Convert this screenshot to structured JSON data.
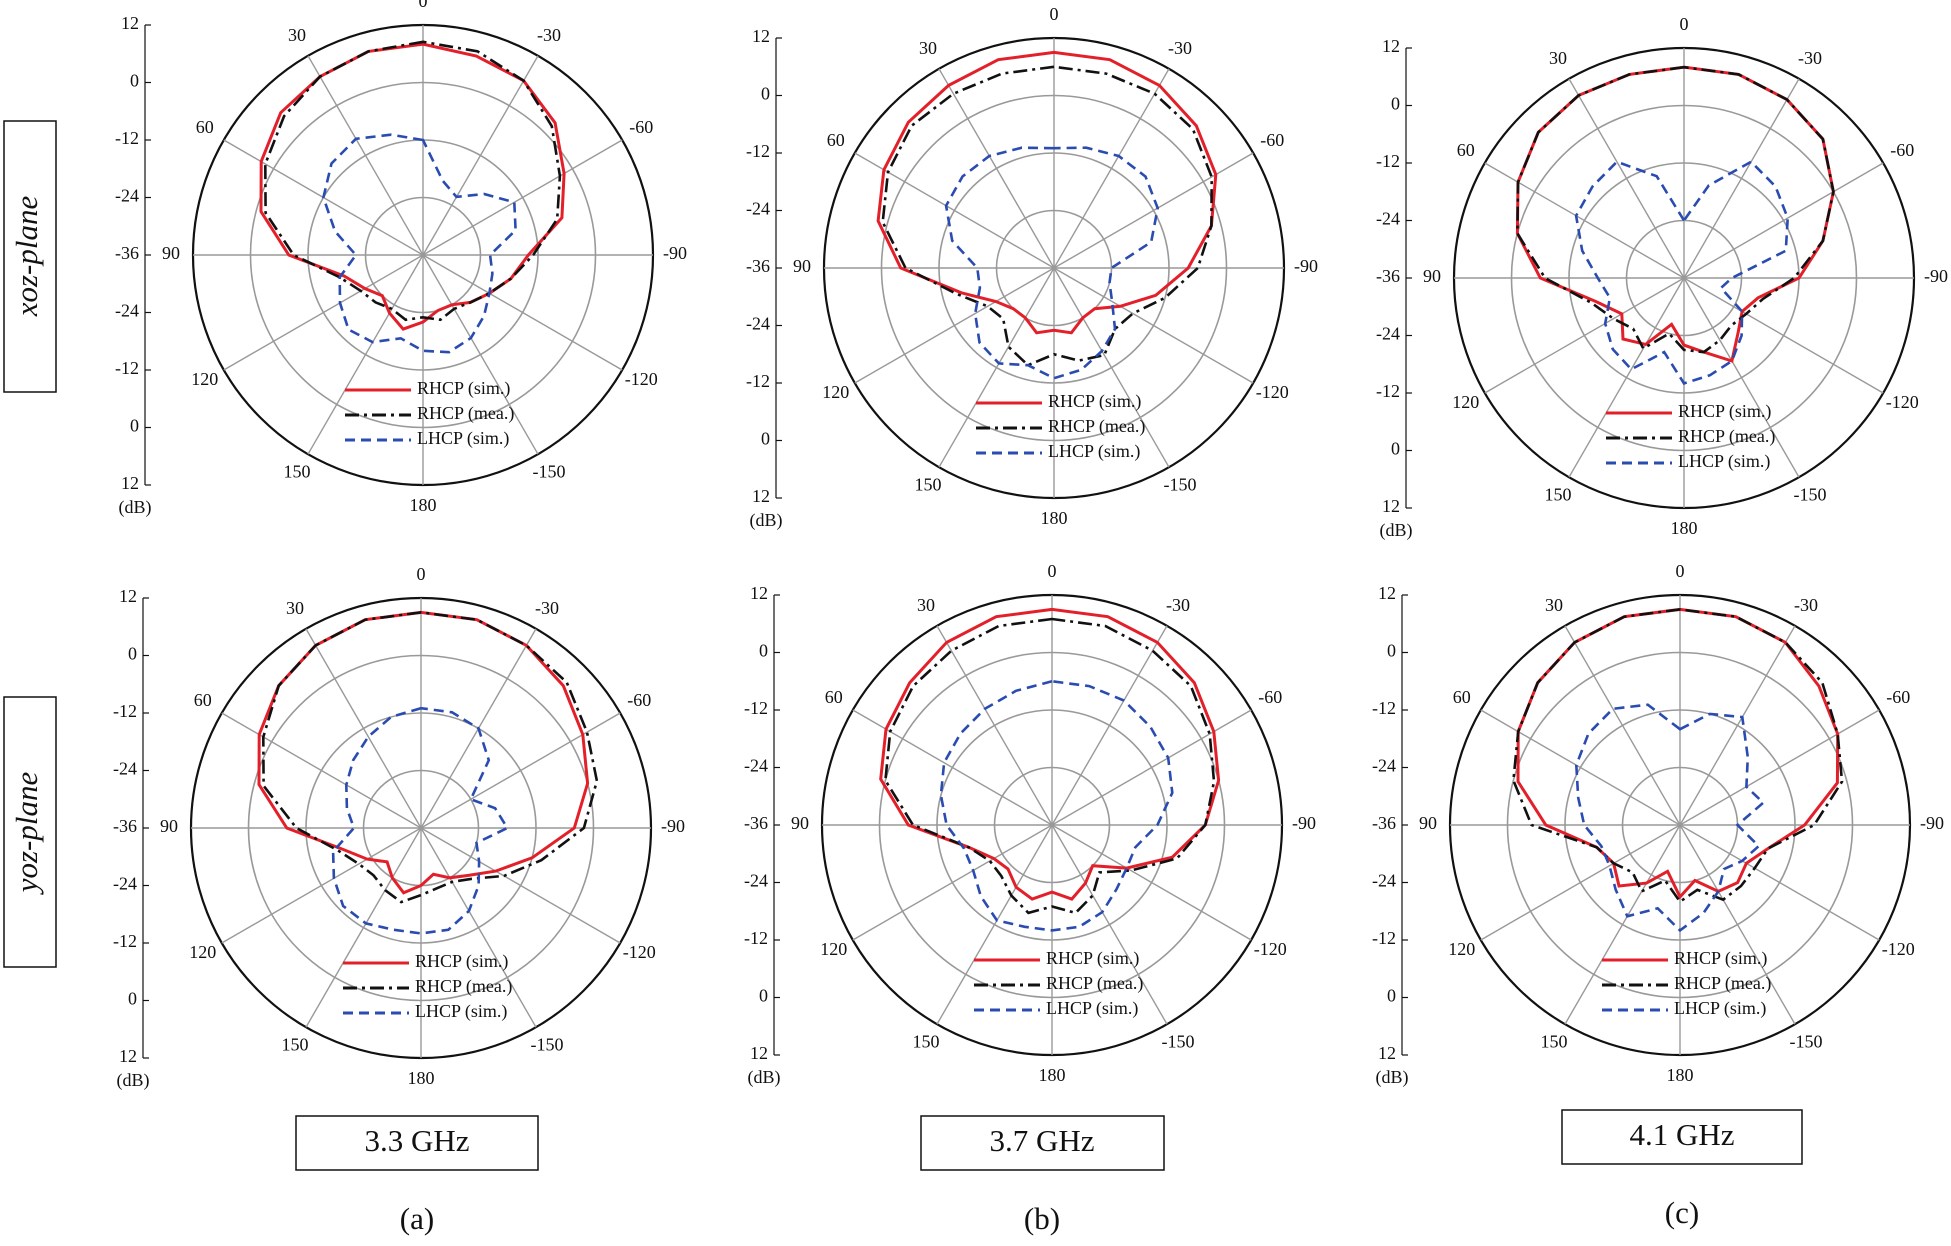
{
  "row_labels": [
    "xoz-plane",
    "yoz-plane"
  ],
  "column_labels": [
    "3.3 GHz",
    "3.7 GHz",
    "4.1 GHz"
  ],
  "panel_labels": [
    "(a)",
    "(b)",
    "(c)"
  ],
  "chart_data": [
    {
      "type": "polar",
      "r_unit": "(dB)",
      "rlim": [
        -36,
        12
      ],
      "rticks": [
        -36,
        -24,
        -12,
        0,
        12
      ],
      "thetaticks": [
        0,
        30,
        60,
        90,
        120,
        150,
        180,
        -150,
        -120,
        -90,
        -60,
        -30
      ],
      "theta": [
        0,
        15,
        30,
        45,
        60,
        75,
        90,
        105,
        120,
        135,
        150,
        165,
        180,
        -165,
        -150,
        -135,
        -120,
        -105,
        -90,
        -75,
        -60,
        -45,
        -30,
        -15
      ],
      "series": [
        {
          "name": "RHCP (sim.)",
          "color": "#e3202a",
          "dash": "solid",
          "values": [
            8,
            8,
            7,
            6,
            3,
            -1,
            -8,
            -19,
            -22,
            -24,
            -22,
            -20,
            -22,
            -24,
            -24,
            -22,
            -20,
            -17,
            -14,
            -6,
            -2,
            3,
            6,
            7
          ]
        },
        {
          "name": "RHCP (mea.)",
          "color": "#111111",
          "dash": "dashdot",
          "values": [
            8.5,
            8,
            7,
            5,
            2,
            -2,
            -9,
            -18,
            -21,
            -22,
            -23,
            -22,
            -23,
            -22,
            -23,
            -22,
            -20,
            -17,
            -13,
            -7,
            -3,
            2,
            6,
            8
          ]
        },
        {
          "name": "LHCP (sim.)",
          "color": "#2a4bb0",
          "dash": "dashed",
          "values": [
            -12,
            -10,
            -8,
            -9,
            -12,
            -17,
            -22,
            -18,
            -16,
            -14,
            -15,
            -18,
            -16,
            -15,
            -16,
            -18,
            -20,
            -21,
            -22,
            -16,
            -14,
            -18,
            -22,
            -20
          ]
        }
      ]
    },
    {
      "type": "polar",
      "r_unit": "(dB)",
      "rlim": [
        -36,
        12
      ],
      "rticks": [
        -36,
        -24,
        -12,
        0,
        12
      ],
      "thetaticks": [
        0,
        30,
        60,
        90,
        120,
        150,
        180,
        -150,
        -120,
        -90,
        -60,
        -30
      ],
      "theta": [
        0,
        15,
        30,
        45,
        60,
        75,
        90,
        105,
        120,
        135,
        150,
        165,
        180,
        -165,
        -150,
        -135,
        -120,
        -105,
        -90,
        -75,
        -60,
        -45,
        -30,
        -15
      ],
      "series": [
        {
          "name": "RHCP (sim.)",
          "color": "#e3202a",
          "dash": "solid",
          "values": [
            9,
            9,
            8,
            7,
            5,
            2,
            -4,
            -16,
            -22,
            -24,
            -24,
            -22,
            -23,
            -22,
            -24,
            -24,
            -20,
            -14,
            -8,
            -2,
            3,
            6,
            8,
            9
          ]
        },
        {
          "name": "RHCP (mea.)",
          "color": "#111111",
          "dash": "dashdot",
          "values": [
            6,
            6,
            6,
            6,
            4,
            1,
            -5,
            -15,
            -20,
            -21,
            -17,
            -15,
            -18,
            -16,
            -15,
            -18,
            -17,
            -12,
            -6,
            -2,
            2,
            5,
            6,
            6
          ]
        },
        {
          "name": "LHCP (sim.)",
          "color": "#2a4bb0",
          "dash": "dashed",
          "values": [
            -11,
            -10,
            -9,
            -9,
            -10,
            -14,
            -20,
            -20,
            -17,
            -14,
            -13,
            -15,
            -13,
            -14,
            -16,
            -18,
            -22,
            -24,
            -24,
            -15,
            -11,
            -9,
            -9,
            -10
          ]
        }
      ]
    },
    {
      "type": "polar",
      "r_unit": "(dB)",
      "rlim": [
        -36,
        12
      ],
      "rticks": [
        -36,
        -24,
        -12,
        0,
        12
      ],
      "thetaticks": [
        0,
        30,
        60,
        90,
        120,
        150,
        180,
        -150,
        -120,
        -90,
        -60,
        -30
      ],
      "theta": [
        0,
        15,
        30,
        45,
        60,
        75,
        90,
        105,
        120,
        135,
        150,
        165,
        180,
        -165,
        -150,
        -135,
        -120,
        -105,
        -90,
        -75,
        -60,
        -45,
        -30,
        -15
      ],
      "series": [
        {
          "name": "RHCP (sim.)",
          "color": "#e3202a",
          "dash": "solid",
          "values": [
            8,
            8,
            8,
            7,
            4,
            0,
            -6,
            -17,
            -21,
            -18,
            -20,
            -26,
            -22,
            -20,
            -16,
            -20,
            -22,
            -20,
            -12,
            -6,
            0,
            5,
            7,
            8
          ]
        },
        {
          "name": "RHCP (mea.)",
          "color": "#111111",
          "dash": "dashdot",
          "values": [
            8,
            8,
            8,
            7,
            4,
            0,
            -7,
            -16,
            -19,
            -21,
            -19,
            -24,
            -21,
            -20,
            -21,
            -22,
            -21,
            -19,
            -13,
            -6,
            0,
            5,
            7,
            8
          ]
        },
        {
          "name": "LHCP (sim.)",
          "color": "#2a4bb0",
          "dash": "dashed",
          "values": [
            -24,
            -14,
            -8,
            -9,
            -10,
            -14,
            -18,
            -20,
            -17,
            -15,
            -14,
            -20,
            -14,
            -15,
            -16,
            -19,
            -22,
            -28,
            -26,
            -14,
            -11,
            -9,
            -8,
            -16
          ]
        }
      ]
    },
    {
      "type": "polar",
      "r_unit": "(dB)",
      "rlim": [
        -36,
        12
      ],
      "rticks": [
        -36,
        -24,
        -12,
        0,
        12
      ],
      "thetaticks": [
        0,
        30,
        60,
        90,
        120,
        150,
        180,
        -150,
        -120,
        -90,
        -60,
        -30
      ],
      "theta": [
        0,
        15,
        30,
        45,
        60,
        75,
        90,
        105,
        120,
        135,
        150,
        165,
        180,
        -165,
        -150,
        -135,
        -120,
        -105,
        -90,
        -75,
        -60,
        -45,
        -30,
        -15
      ],
      "series": [
        {
          "name": "RHCP (sim.)",
          "color": "#e3202a",
          "dash": "solid",
          "values": [
            9,
            9,
            8,
            6,
            3,
            -1,
            -8,
            -19,
            -23,
            -26,
            -24,
            -22,
            -24,
            -26,
            -24,
            -22,
            -18,
            -12,
            -4,
            0,
            3,
            6,
            8,
            9
          ]
        },
        {
          "name": "RHCP (mea.)",
          "color": "#111111",
          "dash": "dashdot",
          "values": [
            9,
            9,
            8,
            6,
            2,
            -2,
            -10,
            -18,
            -21,
            -22,
            -21,
            -20,
            -22,
            -23,
            -23,
            -21,
            -16,
            -10,
            -2,
            2,
            4,
            7,
            8,
            9
          ]
        },
        {
          "name": "LHCP (sim.)",
          "color": "#2a4bb0",
          "dash": "dashed",
          "values": [
            -11,
            -12,
            -14,
            -16,
            -18,
            -20,
            -22,
            -17,
            -15,
            -13,
            -13,
            -14,
            -14,
            -14,
            -16,
            -19,
            -22,
            -24,
            -18,
            -20,
            -24,
            -16,
            -12,
            -11
          ]
        }
      ]
    },
    {
      "type": "polar",
      "r_unit": "(dB)",
      "rlim": [
        -36,
        12
      ],
      "rticks": [
        -36,
        -24,
        -12,
        0,
        12
      ],
      "thetaticks": [
        0,
        30,
        60,
        90,
        120,
        150,
        180,
        -150,
        -120,
        -90,
        -60,
        -30
      ],
      "theta": [
        0,
        15,
        30,
        45,
        60,
        75,
        90,
        105,
        120,
        135,
        150,
        165,
        180,
        -165,
        -150,
        -135,
        -120,
        -105,
        -90,
        -75,
        -60,
        -45,
        -30,
        -15
      ],
      "series": [
        {
          "name": "RHCP (sim.)",
          "color": "#e3202a",
          "dash": "solid",
          "values": [
            9,
            9,
            8,
            6,
            4,
            1,
            -6,
            -18,
            -22,
            -23,
            -21,
            -20,
            -22,
            -20,
            -22,
            -24,
            -18,
            -10,
            -4,
            0,
            3,
            6,
            8,
            9
          ]
        },
        {
          "name": "RHCP (mea.)",
          "color": "#111111",
          "dash": "dashdot",
          "values": [
            7,
            7,
            6,
            5,
            3,
            0,
            -7,
            -18,
            -21,
            -21,
            -19,
            -17,
            -19,
            -17,
            -19,
            -22,
            -17,
            -9,
            -4,
            -1,
            2,
            5,
            6,
            7
          ]
        },
        {
          "name": "LHCP (sim.)",
          "color": "#2a4bb0",
          "dash": "dashed",
          "values": [
            -6,
            -7,
            -8,
            -9,
            -10,
            -12,
            -14,
            -17,
            -17,
            -15,
            -13,
            -14,
            -14,
            -14,
            -15,
            -17,
            -18,
            -18,
            -14,
            -10,
            -8,
            -7,
            -6,
            -6
          ]
        }
      ]
    },
    {
      "type": "polar",
      "r_unit": "(dB)",
      "rlim": [
        -36,
        12
      ],
      "rticks": [
        -36,
        -24,
        -12,
        0,
        12
      ],
      "thetaticks": [
        0,
        30,
        60,
        90,
        120,
        150,
        180,
        -150,
        -120,
        -90,
        -60,
        -30
      ],
      "theta": [
        0,
        15,
        30,
        45,
        60,
        75,
        90,
        105,
        120,
        135,
        150,
        165,
        180,
        -165,
        -150,
        -135,
        -120,
        -105,
        -90,
        -75,
        -60,
        -45,
        -30,
        -15
      ],
      "series": [
        {
          "name": "RHCP (sim.)",
          "color": "#e3202a",
          "dash": "solid",
          "values": [
            9,
            9,
            8,
            6,
            3,
            -1,
            -8,
            -18,
            -20,
            -18,
            -22,
            -26,
            -21,
            -24,
            -20,
            -19,
            -20,
            -17,
            -10,
            -2,
            2,
            5,
            8,
            9
          ]
        },
        {
          "name": "RHCP (mea.)",
          "color": "#111111",
          "dash": "dashdot",
          "values": [
            9,
            9,
            8,
            6,
            3,
            0,
            -5,
            -18,
            -20,
            -22,
            -20,
            -24,
            -20,
            -22,
            -18,
            -18,
            -18,
            -17,
            -8,
            -1,
            2,
            6,
            8,
            9
          ]
        },
        {
          "name": "LHCP (sim.)",
          "color": "#2a4bb0",
          "dash": "dashed",
          "values": [
            -16,
            -10,
            -8,
            -9,
            -11,
            -14,
            -16,
            -19,
            -19,
            -17,
            -14,
            -18,
            -14,
            -17,
            -20,
            -23,
            -21,
            -19,
            -24,
            -18,
            -20,
            -16,
            -10,
            -12
          ]
        }
      ]
    }
  ]
}
